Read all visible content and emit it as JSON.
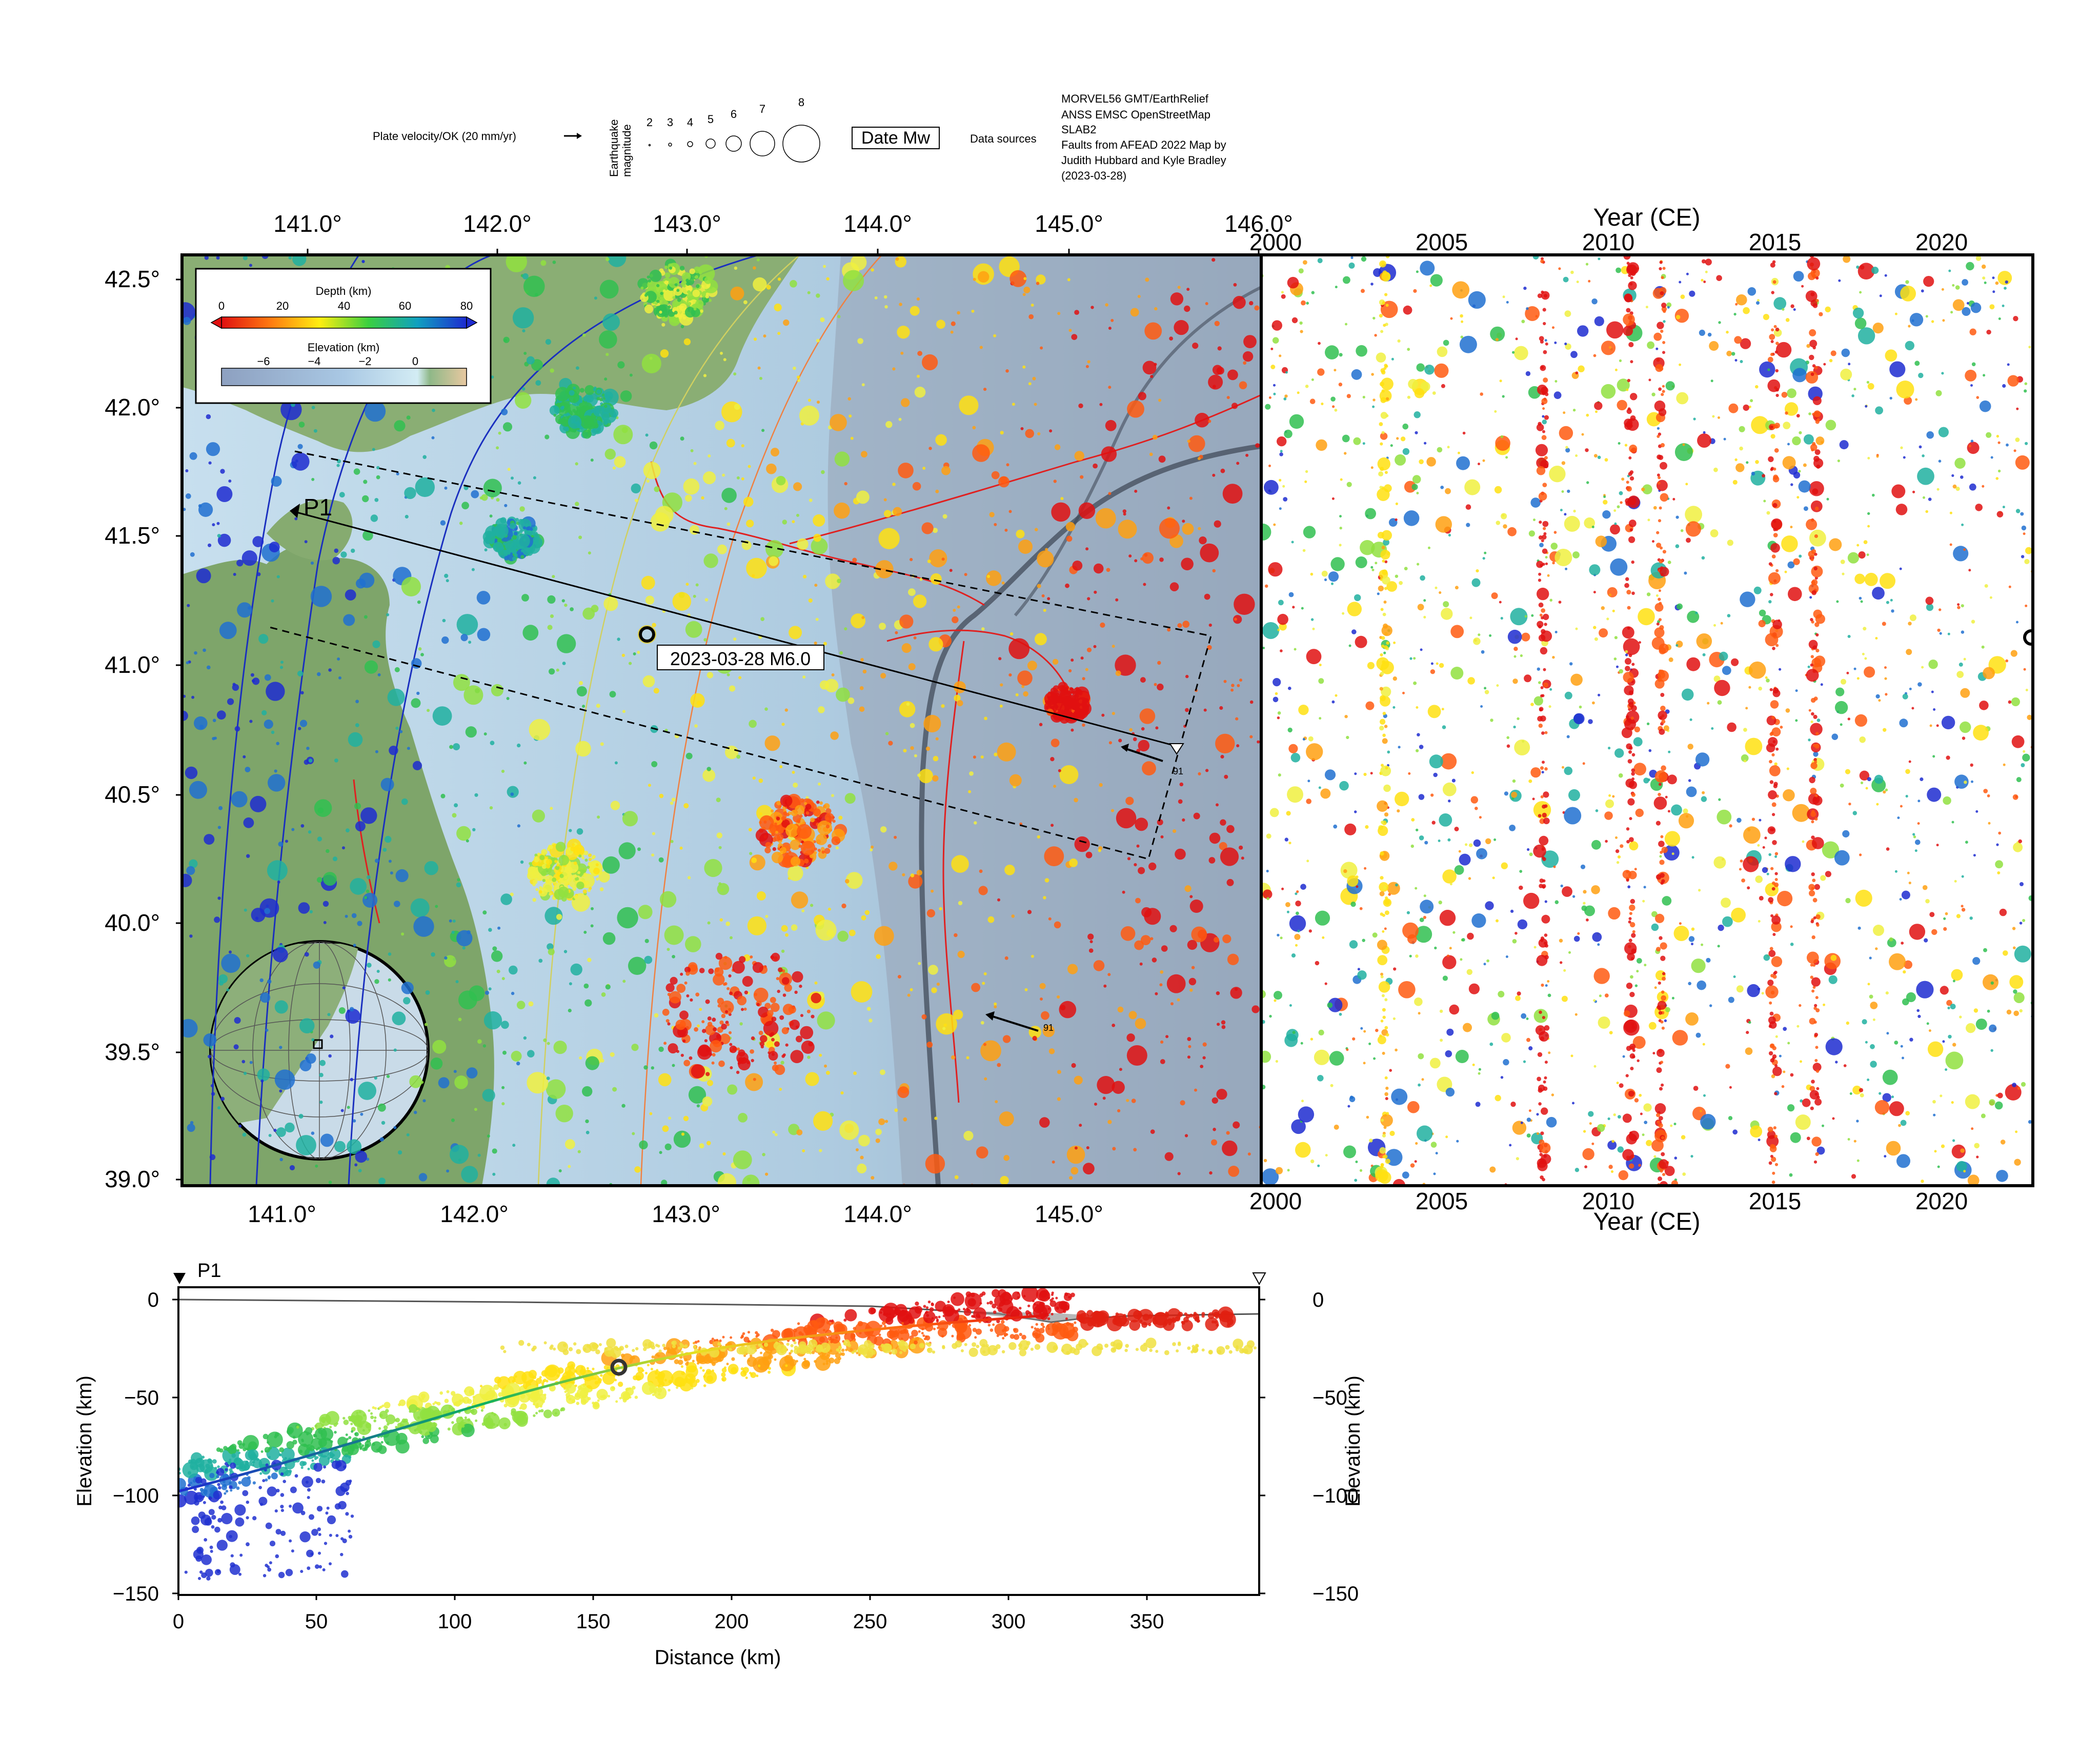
{
  "legend_top": {
    "plate_velocity_label": "Plate velocity/OK (20 mm/yr)",
    "eq_label_line1": "Earthquake",
    "eq_label_line2": "magnitude",
    "magnitudes": [
      "2",
      "3",
      "4",
      "5",
      "6",
      "7",
      "8"
    ],
    "date_mw": "Date Mw",
    "data_sources_label": "Data sources",
    "sources": [
      "MORVEL56 GMT/EarthRelief",
      "ANSS EMSC OpenStreetMap",
      "SLAB2",
      "Faults from AFEAD 2022 Map by",
      "Judith Hubbard and Kyle Bradley",
      "(2023-03-28)"
    ]
  },
  "map": {
    "lon_top_ticks": [
      "141.0°",
      "142.0°",
      "143.0°",
      "144.0°",
      "145.0°",
      "146.0°"
    ],
    "lon_bottom_ticks": [
      "141.0°",
      "142.0°",
      "143.0°",
      "144.0°",
      "145.0°"
    ],
    "lat_ticks": [
      "42.5°",
      "42.0°",
      "41.5°",
      "41.0°",
      "40.5°",
      "40.0°",
      "39.5°",
      "39.0°"
    ],
    "depth_title": "Depth (km)",
    "depth_ticks": [
      "0",
      "20",
      "40",
      "60",
      "80"
    ],
    "elev_title": "Elevation (km)",
    "elev_ticks": [
      "−6",
      "−4",
      "−2",
      "0"
    ],
    "profile_label": "P1",
    "event_label": "2023-03-28 M6.0",
    "velocity_labels": [
      "91",
      "91"
    ],
    "colors": {
      "ocean": "#bcd6e6",
      "land": "#7fa36b",
      "trench": "#7d8694",
      "fault": "#e02020",
      "slab_contour": "#1a2fbf"
    }
  },
  "timeline": {
    "title_top": "Year (CE)",
    "title_bottom": "Year (CE)",
    "x_ticks": [
      "2000",
      "2005",
      "2010",
      "2015",
      "2020"
    ]
  },
  "profile": {
    "label": "P1",
    "ylabel_left": "Elevation (km)",
    "ylabel_right": "Elevation (km)",
    "xlabel": "Distance (km)",
    "x_ticks": [
      "0",
      "50",
      "100",
      "150",
      "200",
      "250",
      "300",
      "350"
    ],
    "y_ticks": [
      "0",
      "−50",
      "−100",
      "−150"
    ]
  }
}
